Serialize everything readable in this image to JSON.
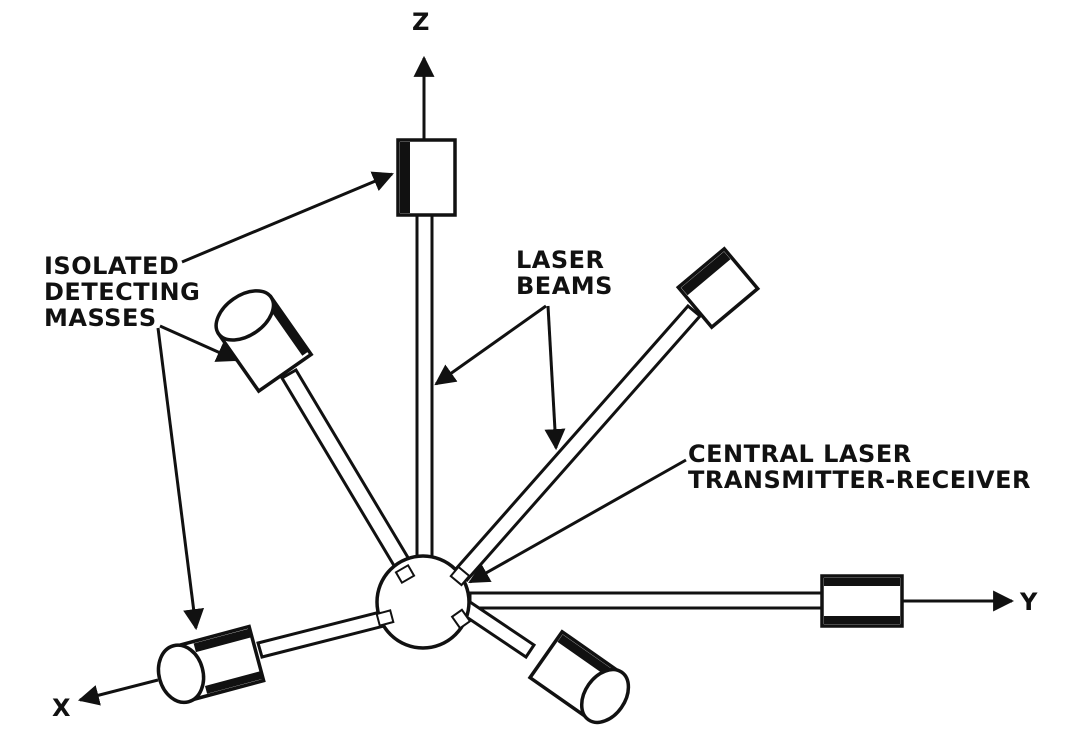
{
  "axes": {
    "x": "X",
    "y": "Y",
    "z": "Z"
  },
  "labels": {
    "isolated": [
      "ISOLATED",
      "DETECTING",
      "MASSES"
    ],
    "beams": [
      "LASER",
      "BEAMS"
    ],
    "central": [
      "CENTRAL LASER",
      "TRANSMITTER-RECEIVER"
    ]
  },
  "colors": {
    "ink": "#111111",
    "paper": "#ffffff"
  }
}
